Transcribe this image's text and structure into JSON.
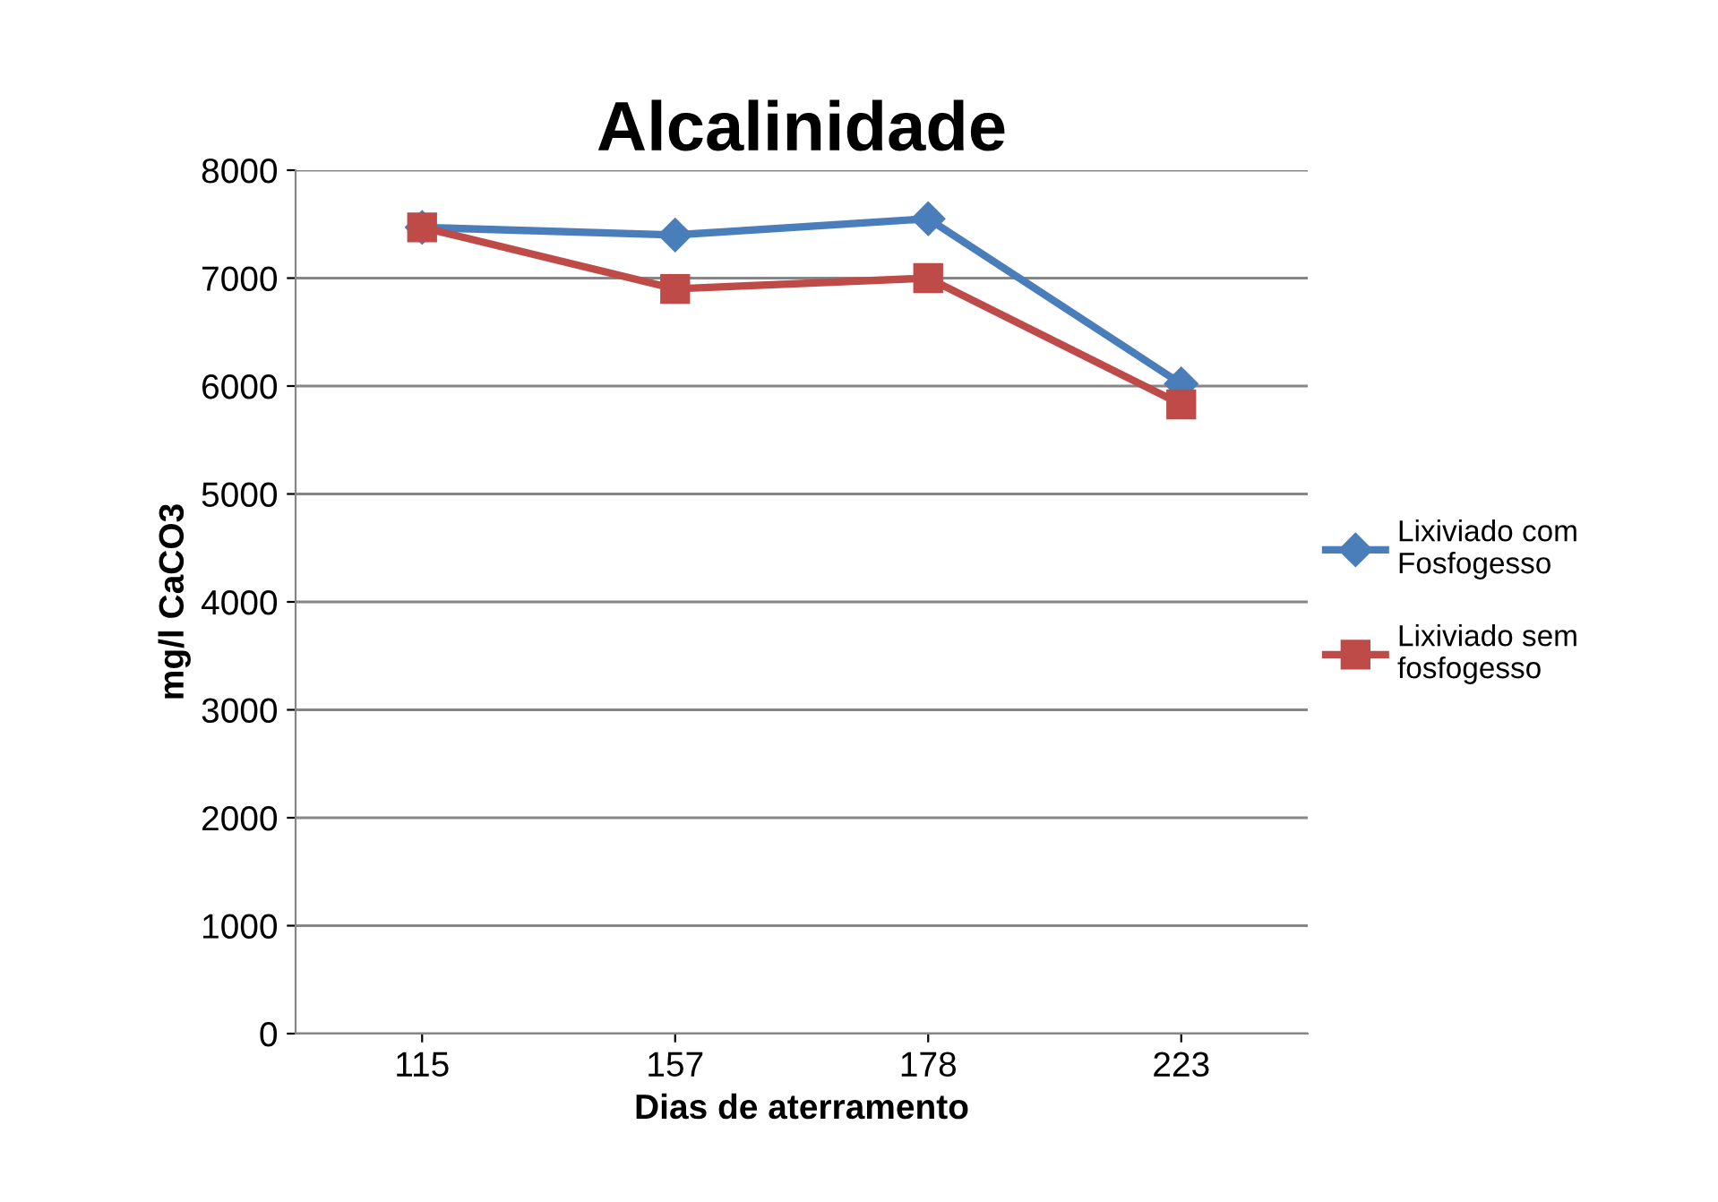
{
  "chart_data": {
    "type": "line",
    "title": "Alcalinidade",
    "xlabel": "Dias de aterramento",
    "ylabel": "mg/l CaCO3",
    "categories": [
      "115",
      "157",
      "178",
      "223"
    ],
    "series": [
      {
        "name": "Lixiviado com Fosfogesso",
        "color": "#4a7ebb",
        "marker": "diamond",
        "values": [
          7470,
          7400,
          7550,
          6020
        ]
      },
      {
        "name": "Lixiviado sem fosfogesso",
        "color": "#be4b48",
        "marker": "square",
        "values": [
          7470,
          6900,
          7000,
          5830
        ]
      }
    ],
    "ylim": [
      0,
      8000
    ],
    "yticks": [
      0,
      1000,
      2000,
      3000,
      4000,
      5000,
      6000,
      7000,
      8000
    ],
    "grid": "y",
    "legend": "right",
    "line_style": "solid"
  }
}
